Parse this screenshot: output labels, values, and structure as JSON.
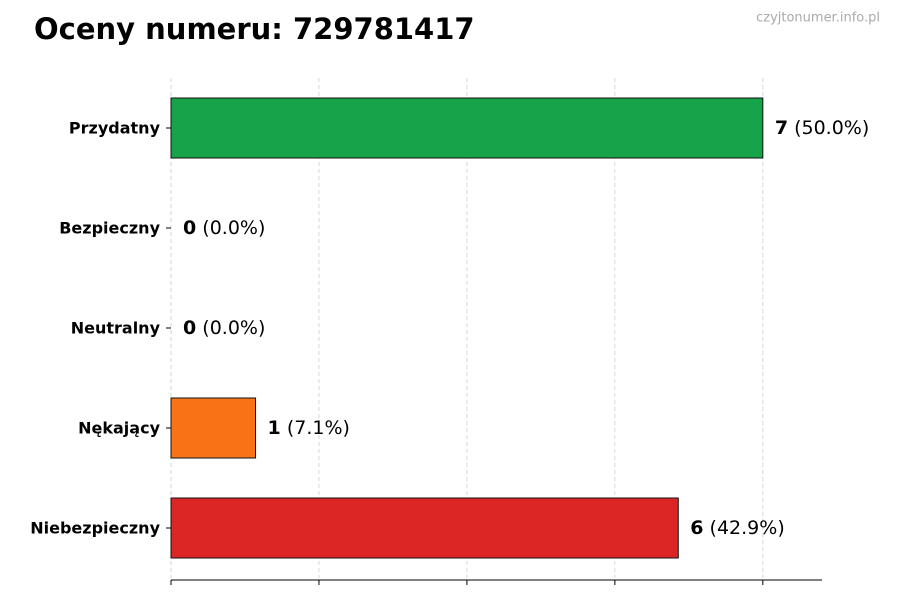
{
  "chart_data": {
    "type": "bar",
    "orientation": "horizontal",
    "title": "Oceny numeru: 729781417",
    "watermark": "czyjtonumer.info.pl",
    "categories": [
      "Przydatny",
      "Bezpieczny",
      "Neutralny",
      "Nękający",
      "Niebezpieczny"
    ],
    "values": [
      7,
      0,
      0,
      1,
      6
    ],
    "percent_labels": [
      "(50.0%)",
      "(0.0%)",
      "(0.0%)",
      "(7.1%)",
      "(42.9%)"
    ],
    "colors": [
      "#16a34a",
      "#22c55e",
      "#9ca3af",
      "#f97316",
      "#dc2626"
    ],
    "xlim": [
      0,
      7.7
    ],
    "xticks": [
      0,
      1.75,
      3.5,
      5.25,
      7
    ],
    "grid": true
  }
}
